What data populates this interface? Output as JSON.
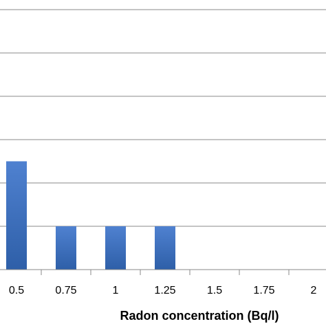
{
  "chart_data": {
    "type": "bar",
    "categories": [
      "0.5",
      "0.75",
      "1",
      "1.25",
      "1.5",
      "1.75",
      "2"
    ],
    "values": [
      5,
      2,
      2,
      2,
      0,
      0,
      0
    ],
    "title": "",
    "xlabel": "Radon concentration (Bq/l)",
    "ylabel": "",
    "ylim": [
      0,
      12
    ],
    "grid": true,
    "legend": "none",
    "bar_color": "#4472C4",
    "grid_color": "#888888",
    "axis_color": "#888888"
  }
}
